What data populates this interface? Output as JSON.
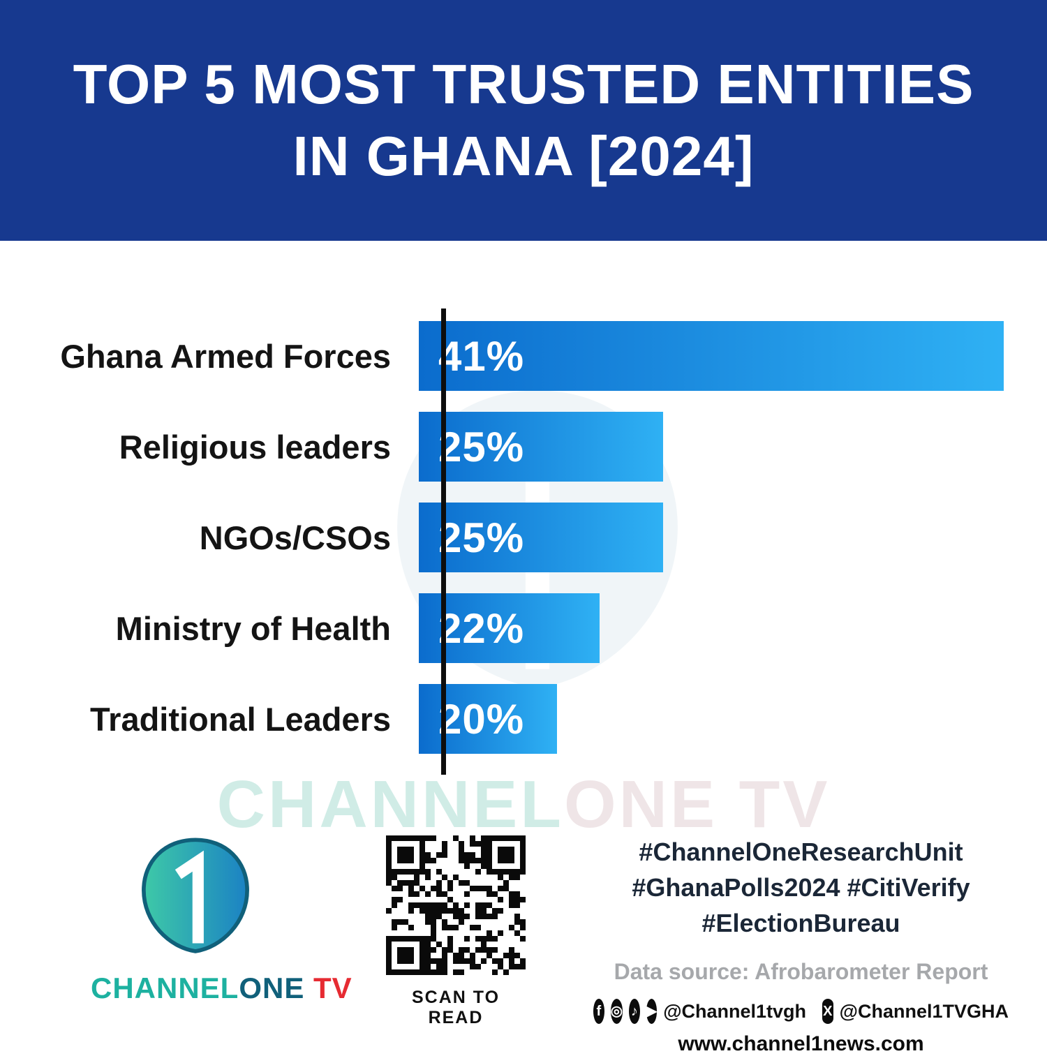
{
  "header": {
    "title_line1": "TOP 5 MOST TRUSTED ENTITIES",
    "title_line2": "IN GHANA [2024]",
    "bg_color": "#17398f",
    "text_color": "#ffffff"
  },
  "chart_data": {
    "type": "bar",
    "orientation": "horizontal",
    "title": "Top 5 Most Trusted Entities in Ghana [2024]",
    "categories": [
      "Ghana Armed Forces",
      "Religious leaders",
      "NGOs/CSOs",
      "Ministry of Health",
      "Traditional Leaders"
    ],
    "values": [
      41,
      25,
      25,
      22,
      20
    ],
    "value_labels": [
      "41%",
      "25%",
      "25%",
      "22%",
      "20%"
    ],
    "xlabel": "",
    "ylabel": "",
    "xlim": [
      0,
      41
    ],
    "grid": false,
    "legend": false,
    "bar_color_start": "#0b6ccd",
    "bar_color_end": "#2fb1f4",
    "value_label_color": "#ffffff",
    "category_label_color": "#141414"
  },
  "watermark": {
    "part1": "CHANNEL",
    "part2": "ONE TV"
  },
  "footer": {
    "logo": {
      "brand_channel": "CHANNEL",
      "brand_one": "ONE",
      "brand_tv": " TV",
      "numeral": "1"
    },
    "qr_caption": "SCAN TO READ",
    "hashtags": [
      "#ChannelOneResearchUnit",
      "#GhanaPolls2024 #CitiVerify",
      "#ElectionBureau"
    ],
    "data_source": "Data source: Afrobarometer Report",
    "social": {
      "icons": {
        "facebook": "f",
        "instagram": "◎",
        "tiktok": "♪",
        "youtube": "▶",
        "x": "X"
      },
      "handle1": "@Channel1tvgh",
      "handle2": "@Channel1TVGHA",
      "website": "www.channel1news.com"
    }
  }
}
